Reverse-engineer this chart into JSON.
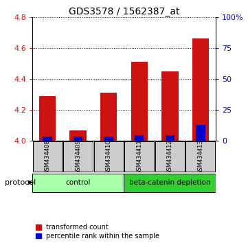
{
  "title": "GDS3578 / 1562387_at",
  "samples": [
    "GSM434408",
    "GSM434409",
    "GSM434410",
    "GSM434411",
    "GSM434412",
    "GSM434413"
  ],
  "transformed_counts": [
    4.29,
    4.07,
    4.31,
    4.51,
    4.45,
    4.66
  ],
  "percentile_ranks": [
    3.5,
    3.5,
    3.5,
    4.5,
    4.5,
    13.0
  ],
  "ylim": [
    4.0,
    4.8
  ],
  "yticks": [
    4.0,
    4.2,
    4.4,
    4.6,
    4.8
  ],
  "y2lim": [
    0,
    100
  ],
  "y2ticks": [
    0,
    25,
    50,
    75,
    100
  ],
  "y2ticklabels": [
    "0",
    "25",
    "50",
    "75",
    "100%"
  ],
  "bar_color_red": "#CC1111",
  "bar_color_blue": "#0000CC",
  "control_label": "control",
  "treatment_label": "beta-catenin depletion",
  "protocol_label": "protocol",
  "legend_red": "transformed count",
  "legend_blue": "percentile rank within the sample",
  "control_bg": "#AAFFAA",
  "treatment_bg": "#33CC33",
  "sample_bg": "#CCCCCC",
  "bar_width": 0.55,
  "base_value": 4.0
}
